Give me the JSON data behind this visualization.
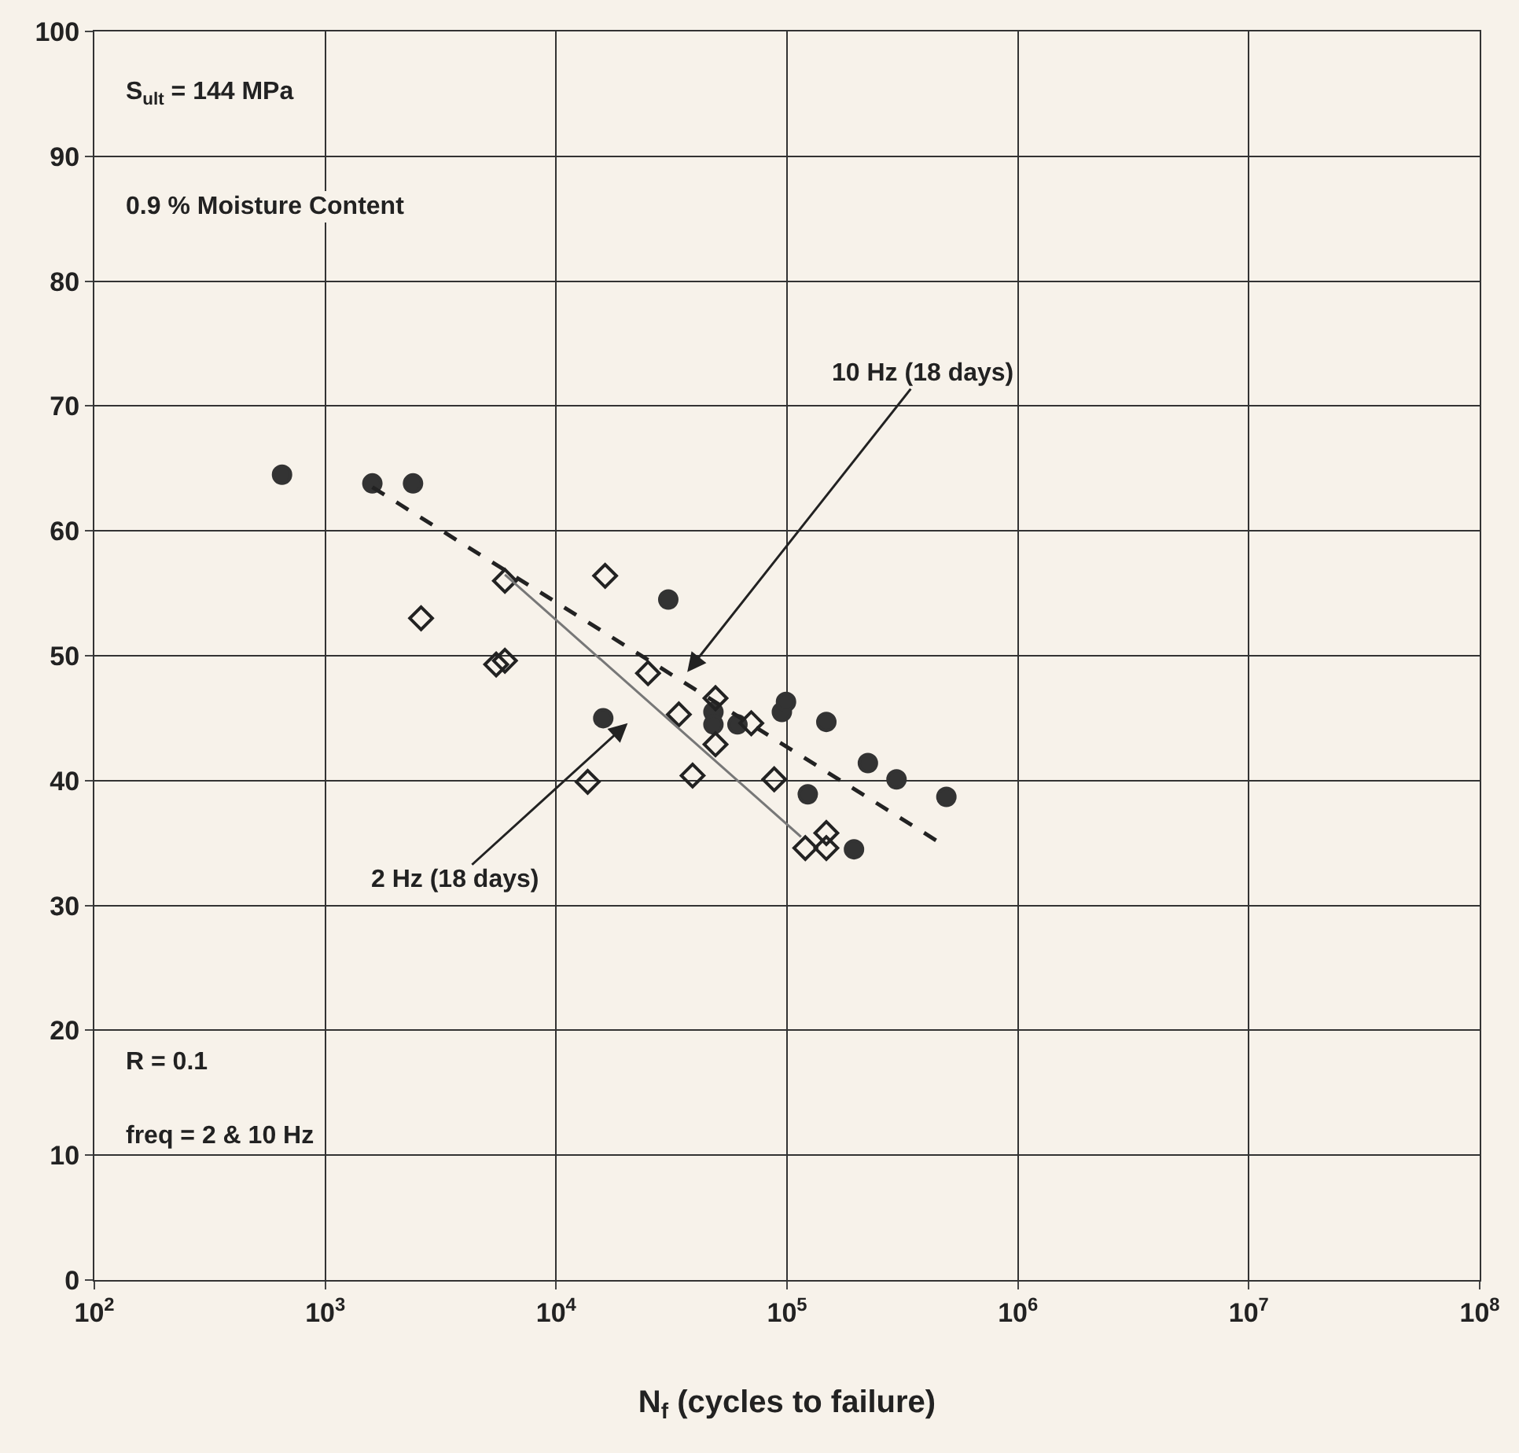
{
  "chart_data": {
    "type": "scatter",
    "xlabel": "N$_{f}$ (cycles to failure)",
    "log": "x",
    "xlim": [
      100,
      100000000
    ],
    "xticks": [
      {
        "value": 100,
        "label": "10$^{2}$"
      },
      {
        "value": 1000,
        "label": "10$^{3}$"
      },
      {
        "value": 10000,
        "label": "10$^{4}$"
      },
      {
        "value": 100000,
        "label": "10$^{5}$"
      },
      {
        "value": 1000000,
        "label": "10$^{6}$"
      },
      {
        "value": 10000000,
        "label": "10$^{7}$"
      },
      {
        "value": 100000000,
        "label": "10$^{8}$"
      }
    ],
    "ylim": [
      0,
      100
    ],
    "yticks": [
      0,
      10,
      20,
      30,
      40,
      50,
      60,
      70,
      80,
      90,
      100
    ],
    "grid": true,
    "series": [
      {
        "marker": "circle",
        "color": "#333333",
        "x": [
          650,
          1600,
          2400,
          30600,
          16000,
          48000,
          48000,
          61000,
          95000,
          99000,
          148000,
          224000,
          298000,
          490000,
          123000,
          195000
        ],
        "values": [
          64.5,
          63.8,
          63.8,
          54.5,
          45.0,
          45.5,
          44.5,
          44.5,
          45.5,
          46.3,
          44.7,
          41.4,
          40.1,
          38.7,
          38.9,
          34.5
        ]
      },
      {
        "marker": "diamond",
        "color": "#222222",
        "x": [
          2600,
          5500,
          6000,
          6000,
          16300,
          25000,
          34000,
          49000,
          49000,
          70000,
          13700,
          39000,
          88000,
          120000,
          148000,
          148000
        ],
        "values": [
          53.0,
          49.3,
          49.6,
          56.0,
          56.4,
          48.6,
          45.3,
          46.6,
          42.9,
          44.6,
          39.9,
          40.4,
          40.1,
          34.6,
          35.8,
          34.6
        ]
      },
      {
        "type": "line",
        "line_style": "dashed",
        "color": "#222222",
        "x": [
          1600,
          480000
        ],
        "values": [
          63.5,
          34.8
        ]
      },
      {
        "type": "line",
        "line_style": "solid",
        "color": "#777777",
        "x": [
          6000,
          115000
        ],
        "values": [
          56.5,
          35.5
        ]
      }
    ],
    "annotations": [
      "S$_{ult}$ = 144 MPa",
      "0.9 % Moisture Content",
      "10 Hz (18 days)",
      "2 Hz (18 days)",
      "R = 0.1",
      "freq = 2 & 10 Hz"
    ]
  }
}
